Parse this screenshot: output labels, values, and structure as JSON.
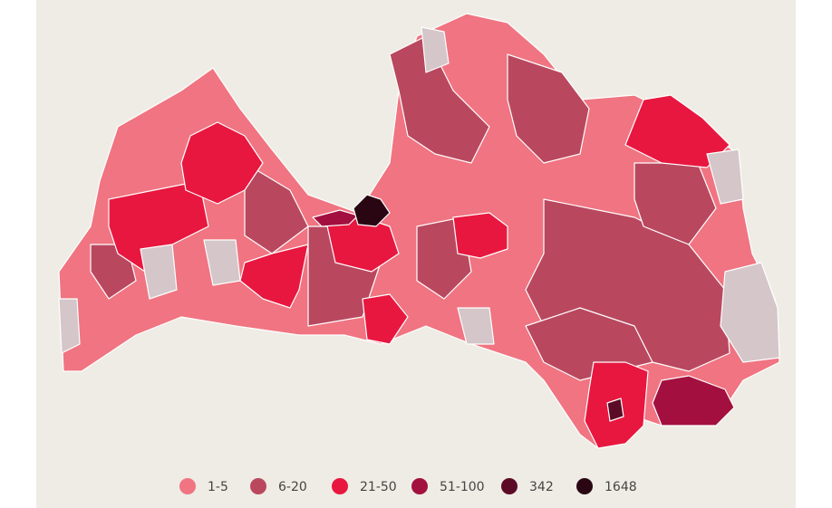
{
  "legend": {
    "items": [
      {
        "label": "1-5",
        "color": "#f07481"
      },
      {
        "label": "6-20",
        "color": "#b9485f"
      },
      {
        "label": "21-50",
        "color": "#e8173f"
      },
      {
        "label": "51-100",
        "color": "#a3103f"
      },
      {
        "label": "342",
        "color": "#5c0b27"
      },
      {
        "label": "1648",
        "color": "#2a0613"
      }
    ]
  }
}
